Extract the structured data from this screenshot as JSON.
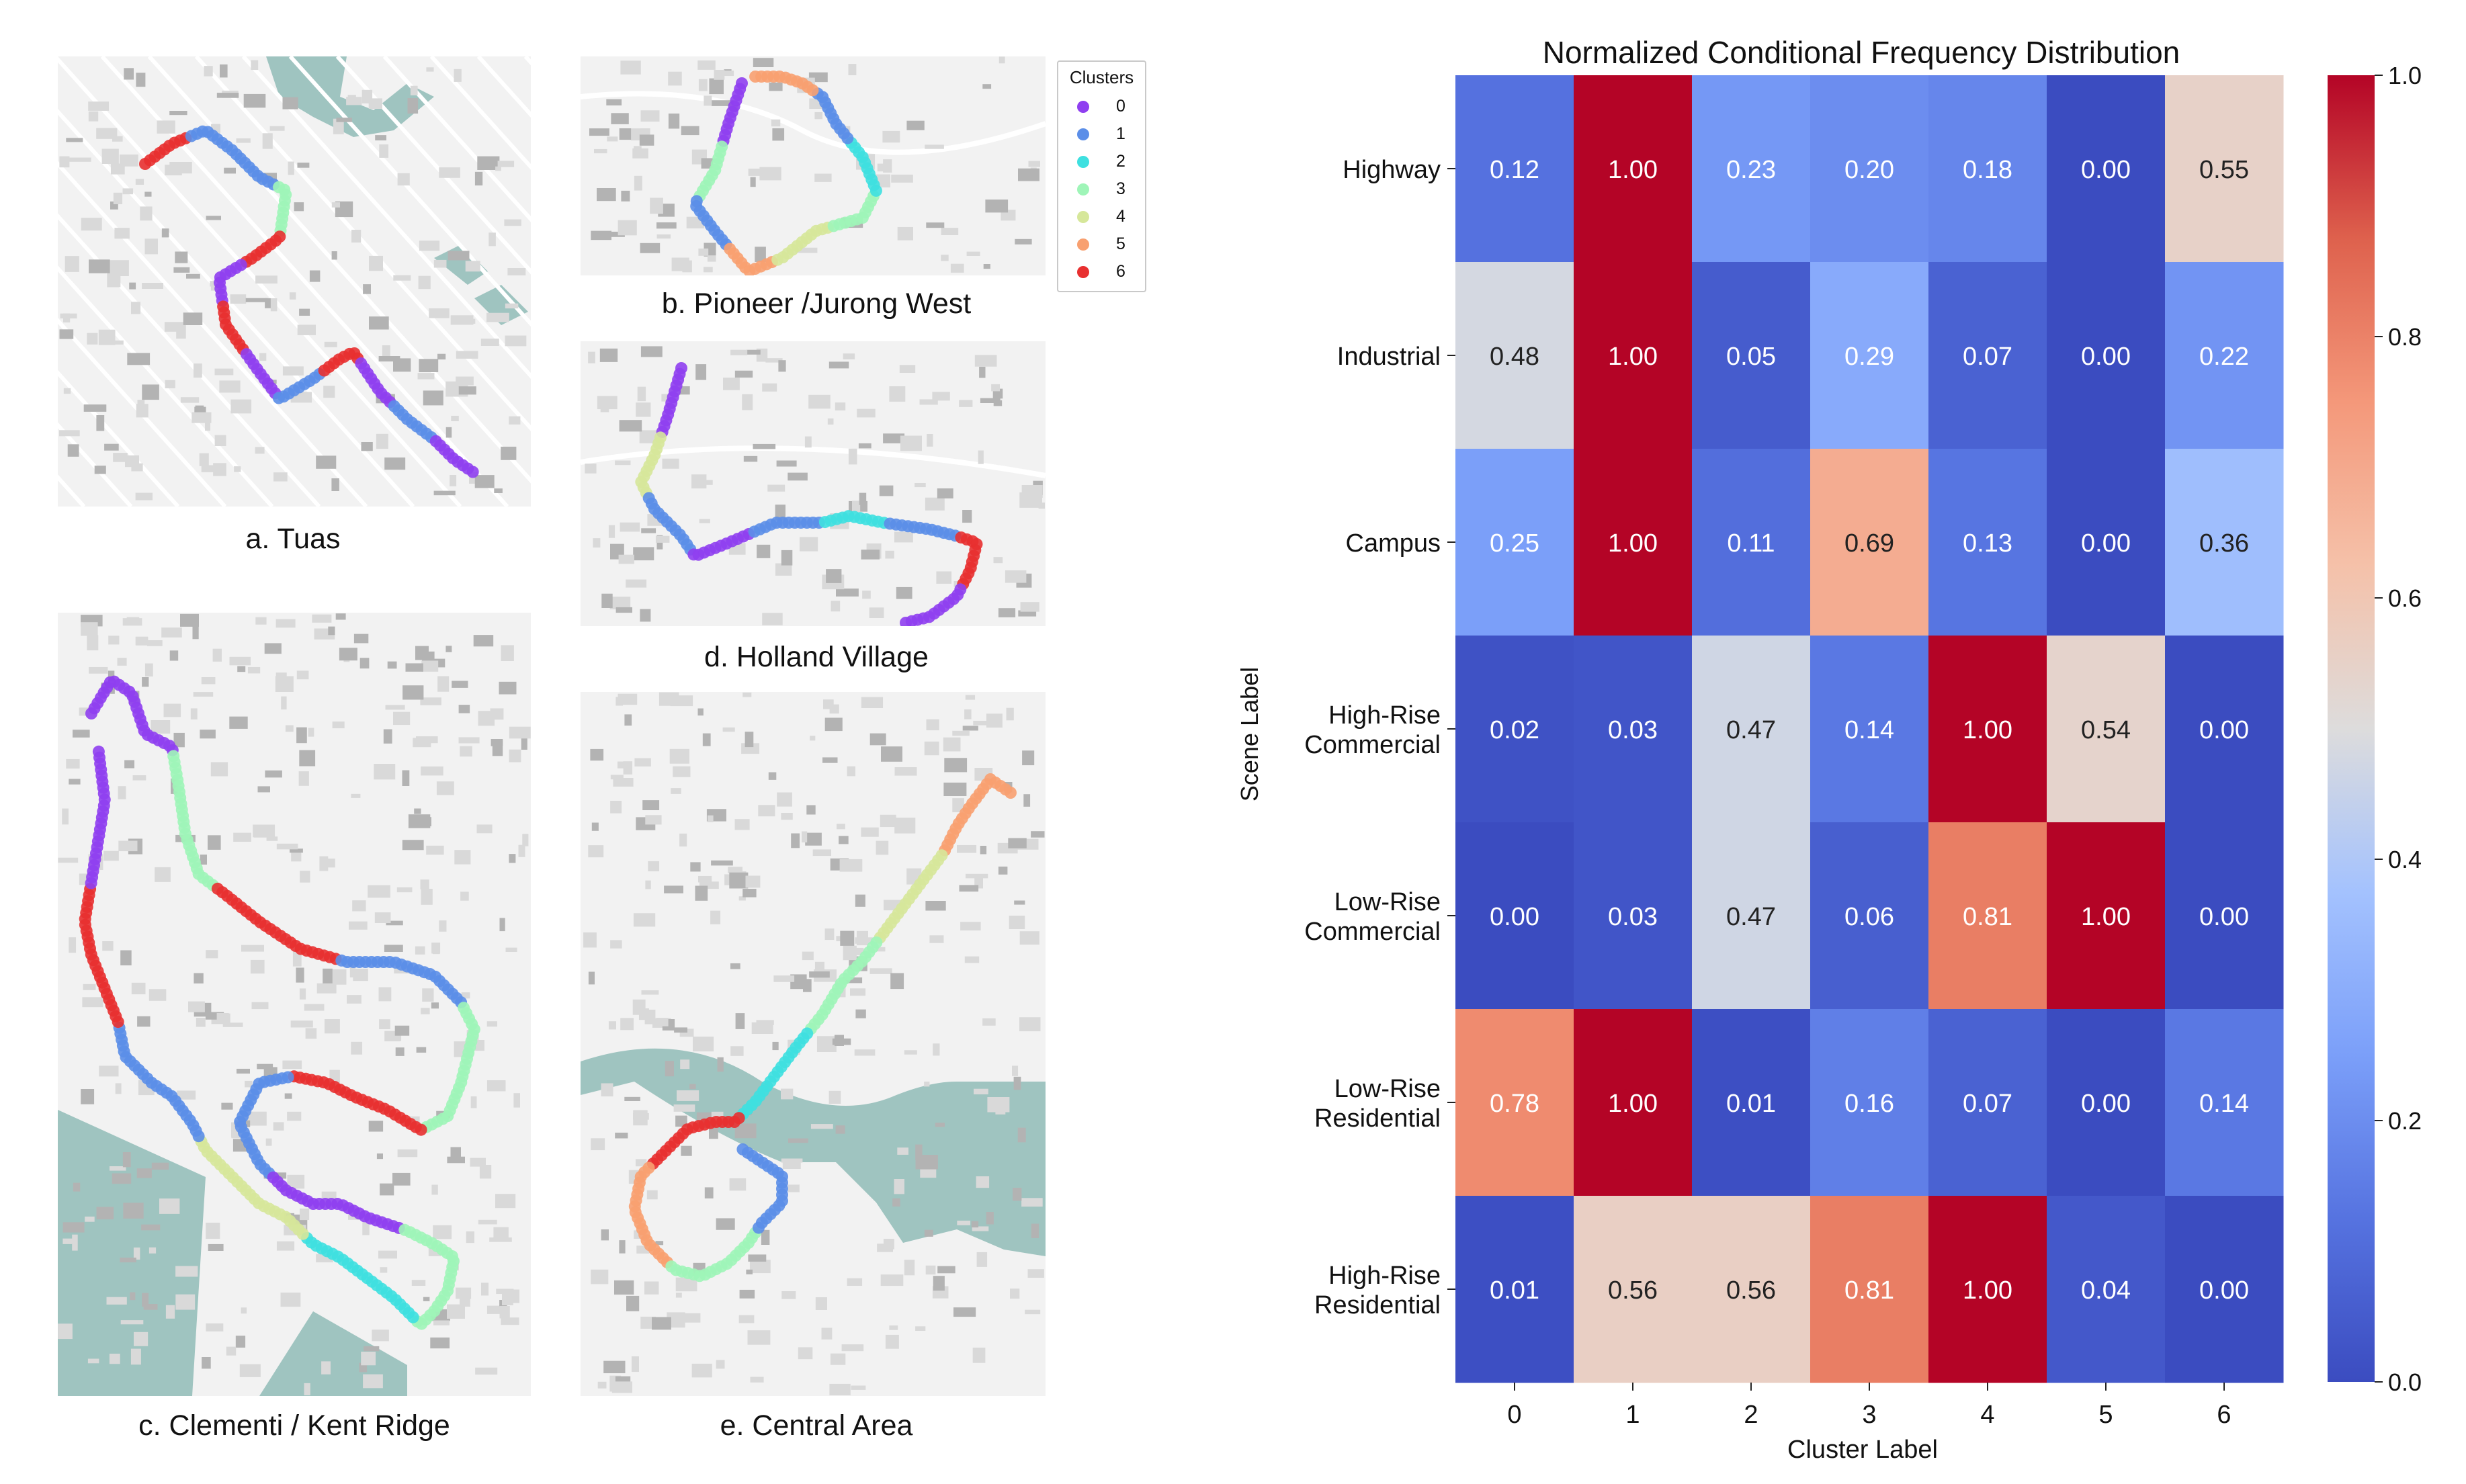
{
  "panels": {
    "tuas": {
      "caption": "a. Tuas",
      "route_color_sequence": [
        "6",
        "1",
        "1",
        "3",
        "6",
        "0",
        "6",
        "0",
        "1",
        "6",
        "0",
        "1",
        "0"
      ]
    },
    "pioneer": {
      "caption": "b. Pioneer /Jurong West",
      "route_color_sequence": [
        "0",
        "3",
        "1",
        "5",
        "4",
        "3",
        "2",
        "1",
        "5"
      ]
    },
    "clementi": {
      "caption": "c. Clementi / Kent Ridge",
      "route_color_sequence": [
        "0",
        "3",
        "6",
        "1",
        "3",
        "6",
        "1",
        "0",
        "3",
        "2",
        "4",
        "1",
        "6",
        "0"
      ]
    },
    "holland": {
      "caption": "d. Holland Village",
      "route_color_sequence": [
        "0",
        "4",
        "1",
        "0",
        "1",
        "2",
        "1",
        "6",
        "0"
      ]
    },
    "central": {
      "caption": "e. Central Area",
      "route_color_sequence": [
        "5",
        "4",
        "3",
        "2",
        "6",
        "5",
        "3",
        "1"
      ]
    }
  },
  "legend": {
    "title": "Clusters",
    "items": [
      {
        "label": "0",
        "color": "#8f3ff0"
      },
      {
        "label": "1",
        "color": "#5b8ee8"
      },
      {
        "label": "2",
        "color": "#3ee0e0"
      },
      {
        "label": "3",
        "color": "#9ff5b8"
      },
      {
        "label": "4",
        "color": "#d6e79a"
      },
      {
        "label": "5",
        "color": "#f8a070"
      },
      {
        "label": "6",
        "color": "#e83030"
      }
    ]
  },
  "chart_data": {
    "type": "heatmap",
    "title": "Normalized Conditional Frequency Distribution",
    "xlabel": "Cluster Label",
    "ylabel": "Scene Label",
    "x_categories": [
      "0",
      "1",
      "2",
      "3",
      "4",
      "5",
      "6"
    ],
    "y_categories": [
      [
        "Highway"
      ],
      [
        "Industrial"
      ],
      [
        "Campus"
      ],
      [
        "High-Rise",
        "Commercial"
      ],
      [
        "Low-Rise",
        "Commercial"
      ],
      [
        "Low-Rise",
        "Residential"
      ],
      [
        "High-Rise",
        "Residential"
      ]
    ],
    "values": [
      [
        0.12,
        1.0,
        0.23,
        0.2,
        0.18,
        0.0,
        0.55
      ],
      [
        0.48,
        1.0,
        0.05,
        0.29,
        0.07,
        0.0,
        0.22
      ],
      [
        0.25,
        1.0,
        0.11,
        0.69,
        0.13,
        0.0,
        0.36
      ],
      [
        0.02,
        0.03,
        0.47,
        0.14,
        1.0,
        0.54,
        0.0
      ],
      [
        0.0,
        0.03,
        0.47,
        0.06,
        0.81,
        1.0,
        0.0
      ],
      [
        0.78,
        1.0,
        0.01,
        0.16,
        0.07,
        0.0,
        0.14
      ],
      [
        0.01,
        0.56,
        0.56,
        0.81,
        1.0,
        0.04,
        0.0
      ]
    ],
    "colorbar": {
      "min": 0.0,
      "max": 1.0,
      "ticks": [
        "0.0",
        "0.2",
        "0.4",
        "0.6",
        "0.8",
        "1.0"
      ],
      "colormap": "coolwarm"
    }
  }
}
